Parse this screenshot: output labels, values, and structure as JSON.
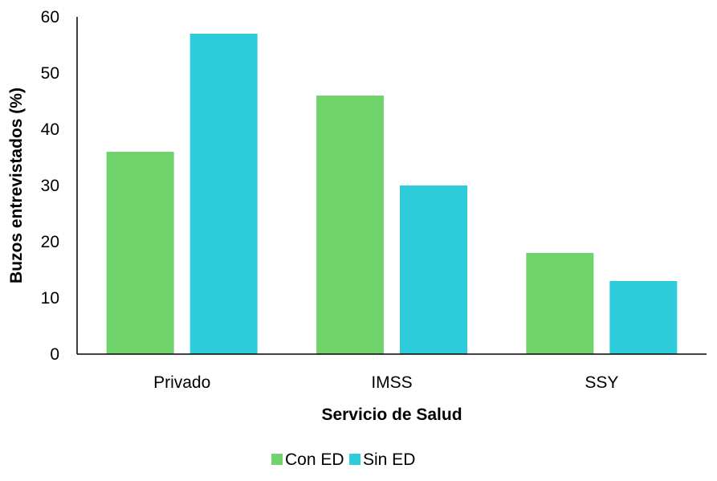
{
  "chart_data": {
    "type": "bar",
    "title": "",
    "categories": [
      "Privado",
      "IMSS",
      "SSY"
    ],
    "series": [
      {
        "name": "Con ED",
        "values": [
          36,
          46,
          18
        ],
        "color": "#70d36b"
      },
      {
        "name": "Sin ED",
        "values": [
          57,
          30,
          13
        ],
        "color": "#2ecbdb"
      }
    ],
    "xlabel": "Servicio de Salud",
    "ylabel": "Buzos entrevistados (%)",
    "ylim": [
      0,
      60
    ],
    "yticks": [
      0,
      10,
      20,
      30,
      40,
      50,
      60
    ],
    "grid": false,
    "legend_position": "bottom"
  }
}
